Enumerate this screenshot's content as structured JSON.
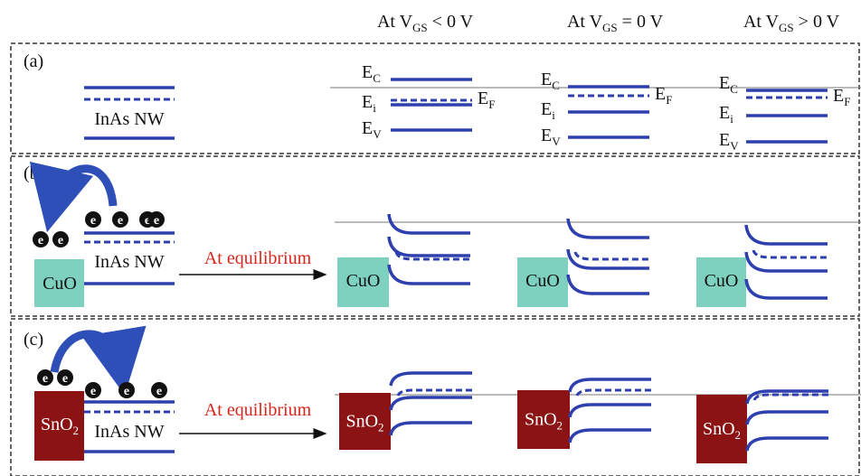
{
  "columns": [
    {
      "pre": "At V",
      "sub": "GS",
      "post": " < 0 V"
    },
    {
      "pre": "At V",
      "sub": "GS",
      "post": " = 0 V"
    },
    {
      "pre": "At V",
      "sub": "GS",
      "post": " > 0 V"
    }
  ],
  "bands": {
    "conduction": {
      "main": "E",
      "sub": "C"
    },
    "intrinsic": {
      "main": "E",
      "sub": "i"
    },
    "fermi": {
      "main": "E",
      "sub": "F"
    },
    "valence": {
      "main": "E",
      "sub": "V"
    }
  },
  "electron": "e",
  "panels": [
    {
      "label": "(a)",
      "material": "InAs NW"
    },
    {
      "label": "(b)",
      "material": "InAs NW",
      "arrow": "At equilibrium",
      "contact": {
        "main": "CuO"
      }
    },
    {
      "label": "(c)",
      "material": "InAs NW",
      "arrow": "At equilibrium",
      "contact": {
        "main": "SnO",
        "sub": "2"
      }
    }
  ]
}
